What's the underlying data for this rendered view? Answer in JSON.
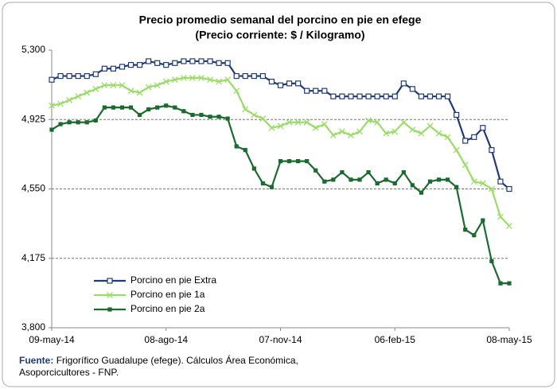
{
  "chart_data": {
    "type": "line",
    "title": "Precio promedio semanal del porcino en pie en efege",
    "subtitle": "(Precio corriente: $ / Kilogramo)",
    "categories": [
      "09-may-14",
      null,
      null,
      null,
      null,
      null,
      null,
      null,
      null,
      null,
      null,
      null,
      null,
      "08-ago-14",
      null,
      null,
      null,
      null,
      null,
      null,
      null,
      null,
      null,
      null,
      null,
      null,
      "07-nov-14",
      null,
      null,
      null,
      null,
      null,
      null,
      null,
      null,
      null,
      null,
      null,
      null,
      "06-feb-15",
      null,
      null,
      null,
      null,
      null,
      null,
      null,
      null,
      null,
      null,
      null,
      null,
      "08-may-15"
    ],
    "series": [
      {
        "name": "Porcino en pie Extra",
        "color": "#1f3a7a",
        "marker": "square-open",
        "values": [
          5140,
          5160,
          5160,
          5160,
          5160,
          5170,
          5200,
          5200,
          5210,
          5220,
          5220,
          5240,
          5230,
          5220,
          5230,
          5240,
          5240,
          5240,
          5240,
          5230,
          5230,
          5160,
          5160,
          5160,
          5160,
          5130,
          5110,
          5120,
          5120,
          5080,
          5080,
          5080,
          5050,
          5050,
          5050,
          5050,
          5050,
          5050,
          5050,
          5050,
          5120,
          5090,
          5050,
          5050,
          5050,
          5050,
          4950,
          4810,
          4830,
          4880,
          4760,
          4590,
          4550
        ]
      },
      {
        "name": "Porcino en pie 1a",
        "color": "#99dd66",
        "marker": "x",
        "values": [
          5000,
          5010,
          5030,
          5050,
          5070,
          5090,
          5110,
          5110,
          5110,
          5080,
          5070,
          5100,
          5110,
          5130,
          5140,
          5150,
          5150,
          5150,
          5140,
          5130,
          5140,
          5080,
          4980,
          4950,
          4930,
          4880,
          4890,
          4910,
          4910,
          4910,
          4880,
          4900,
          4840,
          4860,
          4840,
          4860,
          4920,
          4910,
          4850,
          4860,
          4910,
          4870,
          4850,
          4890,
          4850,
          4830,
          4760,
          4680,
          4590,
          4580,
          4550,
          4400,
          4350
        ]
      },
      {
        "name": "Porcino en pie 2a",
        "color": "#1a6b2e",
        "marker": "square",
        "values": [
          4870,
          4900,
          4910,
          4910,
          4910,
          4920,
          4990,
          4990,
          4990,
          4990,
          4950,
          4980,
          4990,
          5000,
          4990,
          4970,
          4950,
          4950,
          4940,
          4940,
          4930,
          4780,
          4760,
          4660,
          4580,
          4560,
          4700,
          4700,
          4700,
          4700,
          4650,
          4590,
          4600,
          4640,
          4600,
          4600,
          4640,
          4580,
          4600,
          4580,
          4640,
          4570,
          4530,
          4590,
          4600,
          4600,
          4560,
          4330,
          4300,
          4380,
          4160,
          4040,
          4040
        ]
      }
    ],
    "ylim": [
      3800,
      5300
    ],
    "yticks": [
      {
        "value": 3800,
        "label": "3,800"
      },
      {
        "value": 4175,
        "label": "4,175"
      },
      {
        "value": 4550,
        "label": "4,550"
      },
      {
        "value": 4925,
        "label": "4,925"
      },
      {
        "value": 5300,
        "label": "5,300"
      }
    ],
    "grid": true,
    "legend": "lower-left",
    "source": {
      "label": "Fuente:",
      "text": "Frigorífico Guadalupe (efege). Cálculos Área Económica, Asoporcicultores - FNP."
    }
  }
}
